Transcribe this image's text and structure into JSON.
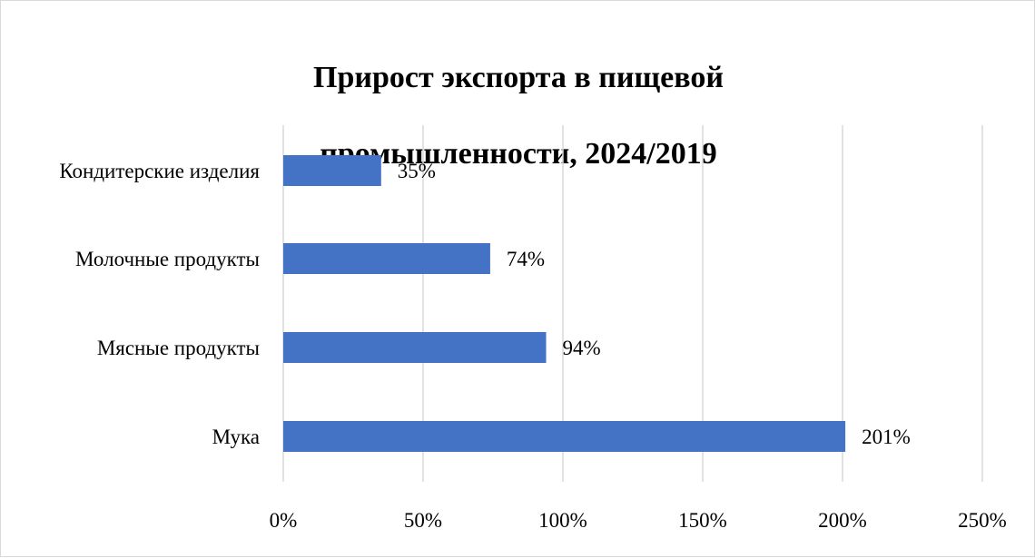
{
  "chart_data": {
    "type": "bar",
    "orientation": "horizontal",
    "title": "Прирост экспорта в пищевой промышленности, 2024/2019",
    "title_lines": [
      "Прирост экспорта в пищевой",
      "промышленности, 2024/2019"
    ],
    "xlabel": "",
    "ylabel": "",
    "categories": [
      "Кондитерские изделия",
      "Молочные продукты",
      "Мясные продукты",
      "Мука"
    ],
    "values": [
      35,
      74,
      94,
      201
    ],
    "data_labels": [
      "35%",
      "74%",
      "94%",
      "201%"
    ],
    "xlim": [
      0,
      250
    ],
    "x_ticks": [
      0,
      50,
      100,
      150,
      200,
      250
    ],
    "x_tick_labels": [
      "0%",
      "50%",
      "100%",
      "150%",
      "200%",
      "250%"
    ],
    "grid": "vertical major gridlines",
    "legend": "none",
    "bar_color": "#4472c4",
    "grid_color": "#d9d9d9"
  }
}
